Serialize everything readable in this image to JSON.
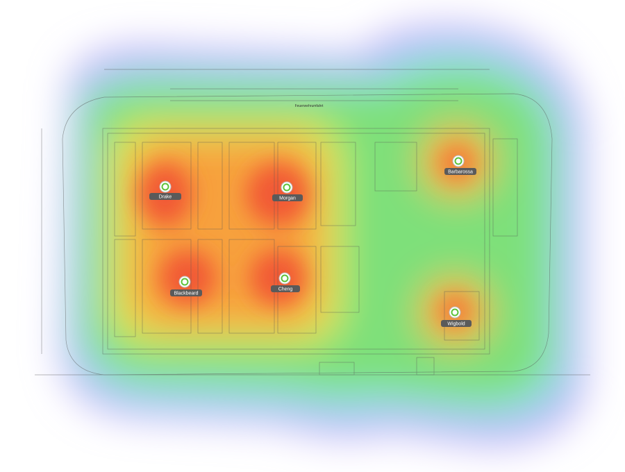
{
  "site": {
    "road_label": "Feuerwehrumfahrt"
  },
  "access_points": [
    {
      "name": "Drake"
    },
    {
      "name": "Morgan"
    },
    {
      "name": "Blackbeard"
    },
    {
      "name": "Cheng"
    },
    {
      "name": "Barbarossa"
    },
    {
      "name": "Wigbold"
    }
  ]
}
